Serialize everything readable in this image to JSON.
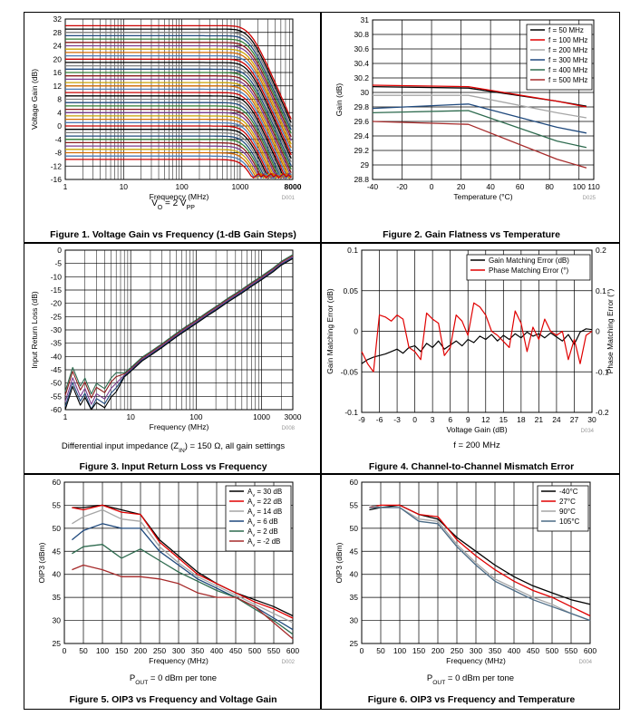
{
  "chart_data": [
    {
      "id": "fig1",
      "type": "line",
      "title": "Figure 1. Voltage Gain vs Frequency (1-dB Gain Steps)",
      "subtitle_main": "V",
      "subtitle_sub_o": "O",
      "subtitle_mid": " = 2 V",
      "subtitle_sub_pp": "PP",
      "code": "D001",
      "xlabel": "Frequency (MHz)",
      "ylabel": "Voltage Gain (dB)",
      "xscale": "log",
      "xlim": [
        1,
        8000
      ],
      "ylim": [
        -16,
        32
      ],
      "xticks": [
        1,
        10,
        100,
        1000,
        8000
      ],
      "xtick_labels": [
        "1",
        "10",
        "100",
        "1000",
        "8000"
      ],
      "yticks": [
        32,
        28,
        24,
        20,
        16,
        12,
        8,
        4,
        0,
        -4,
        -8,
        -12,
        -16
      ],
      "ytick_labels": [
        "32",
        "28",
        "24",
        "20",
        "16",
        "12",
        "8",
        "4",
        "0",
        "-4",
        "-8",
        "-12",
        "-16"
      ],
      "gain_steps_db": [
        30,
        29,
        28,
        27,
        26,
        25,
        24,
        23,
        22,
        21,
        20,
        19,
        18,
        17,
        16,
        15,
        14,
        13,
        12,
        11,
        10,
        9,
        8,
        7,
        6,
        5,
        4,
        3,
        2,
        1,
        0,
        -1,
        -2,
        -3,
        -4,
        -5,
        -6,
        -7,
        -8,
        -9,
        -10
      ],
      "series_colors": [
        "#cc0000",
        "#000000",
        "#7f7f7f",
        "#1f497d",
        "#2e7d32",
        "#8b1a1a",
        "#7a3b8f",
        "#c8a000",
        "#d46a00",
        "#4a7ab5"
      ],
      "bandwidth_3db_mhz": 1500,
      "rolloff_db_per_decade": 40
    },
    {
      "id": "fig2",
      "type": "line",
      "title": "Figure 2. Gain Flatness vs Temperature",
      "code": "D025",
      "xlabel": "Temperature (°C)",
      "ylabel": "Gain (dB)",
      "xlim": [
        -40,
        110
      ],
      "ylim": [
        28.8,
        31
      ],
      "xticks": [
        -40,
        -20,
        0,
        20,
        40,
        60,
        80,
        100,
        110
      ],
      "xtick_labels": [
        "-40",
        "-20",
        "0",
        "20",
        "40",
        "60",
        "80",
        "100",
        "110"
      ],
      "yticks": [
        31,
        30.8,
        30.6,
        30.4,
        30.2,
        30,
        29.8,
        29.6,
        29.4,
        29.2,
        29,
        28.8
      ],
      "ytick_labels": [
        "31",
        "30.8",
        "30.6",
        "30.4",
        "30.2",
        "30",
        "29.8",
        "29.6",
        "29.4",
        "29.2",
        "29",
        "28.8"
      ],
      "legend_position": "top-right",
      "series": [
        {
          "name": "f = 50 MHz",
          "color": "#000000",
          "x": [
            -40,
            25,
            85,
            105
          ],
          "values": [
            30.08,
            30.06,
            29.88,
            29.81
          ]
        },
        {
          "name": "f = 100 MHz",
          "color": "#e00000",
          "x": [
            -40,
            25,
            85,
            105
          ],
          "values": [
            30.1,
            30.08,
            29.88,
            29.8
          ]
        },
        {
          "name": "f = 200 MHz",
          "color": "#a6a6a6",
          "x": [
            -40,
            25,
            85,
            105
          ],
          "values": [
            29.96,
            29.96,
            29.72,
            29.65
          ]
        },
        {
          "name": "f = 300 MHz",
          "color": "#1f497d",
          "x": [
            -40,
            25,
            85,
            105
          ],
          "values": [
            29.78,
            29.84,
            29.52,
            29.44
          ]
        },
        {
          "name": "f = 400 MHz",
          "color": "#2e6b4f",
          "x": [
            -40,
            25,
            85,
            105
          ],
          "values": [
            29.72,
            29.75,
            29.33,
            29.24
          ]
        },
        {
          "name": "f = 500 MHz",
          "color": "#a62a2a",
          "x": [
            -40,
            25,
            85,
            105
          ],
          "values": [
            29.6,
            29.56,
            29.08,
            28.96
          ]
        }
      ]
    },
    {
      "id": "fig3",
      "type": "line",
      "title": "Figure 3. Input Return Loss vs Frequency",
      "note_pre": "Differential input impedance (Z",
      "note_sub": "IN",
      "note_post": ") = 150 Ω, all gain settings",
      "code": "D008",
      "xlabel": "Frequency (MHz)",
      "ylabel": "Input Return Loss (dB)",
      "xscale": "log",
      "xlim": [
        1,
        3000
      ],
      "ylim": [
        -60,
        0
      ],
      "xticks": [
        1,
        10,
        100,
        1000,
        3000
      ],
      "xtick_labels": [
        "1",
        "10",
        "100",
        "1000",
        "3000"
      ],
      "yticks": [
        0,
        -5,
        -10,
        -15,
        -20,
        -25,
        -30,
        -35,
        -40,
        -45,
        -50,
        -55,
        -60
      ],
      "ytick_labels": [
        "0",
        "-5",
        "-10",
        "-15",
        "-20",
        "-25",
        "-30",
        "-35",
        "-40",
        "-45",
        "-50",
        "-55",
        "-60"
      ],
      "series": [
        {
          "name": "all gain settings",
          "color": "#7a3b8f",
          "x": [
            1,
            1.3,
            1.7,
            2,
            2.5,
            3,
            4,
            5,
            6,
            8,
            10,
            15,
            20,
            30,
            50,
            70,
            100,
            150,
            200,
            300,
            500,
            700,
            1000,
            1500,
            2000,
            3000
          ],
          "values": [
            -57,
            -48,
            -55,
            -52,
            -58,
            -54,
            -56,
            -52,
            -50,
            -47,
            -45,
            -41,
            -39,
            -36,
            -32,
            -29.5,
            -27,
            -24,
            -22,
            -19,
            -15.5,
            -13,
            -10.5,
            -7.5,
            -5,
            -2.5
          ]
        }
      ]
    },
    {
      "id": "fig4",
      "type": "line",
      "title": "Figure 4. Channel-to-Channel Mismatch Error",
      "note": "f = 200 MHz",
      "code": "D034",
      "xlabel": "Voltage Gain (dB)",
      "ylabel": "Gain Matching Error (dB)",
      "ylabel_right": "Phase Matching Error (°)",
      "xlim": [
        -9,
        30
      ],
      "ylim": [
        -0.1,
        0.1
      ],
      "ylim_right": [
        -0.2,
        0.2
      ],
      "xticks": [
        -9,
        -6,
        -3,
        0,
        3,
        6,
        9,
        12,
        15,
        18,
        21,
        24,
        27,
        30
      ],
      "xtick_labels": [
        "-9",
        "-6",
        "-3",
        "0",
        "3",
        "6",
        "9",
        "12",
        "15",
        "18",
        "21",
        "24",
        "27",
        "30"
      ],
      "yticks": [
        0.1,
        0.05,
        0,
        -0.05,
        -0.1
      ],
      "ytick_labels": [
        "0.1",
        "0.05",
        "0",
        "-0.05",
        "-0.1"
      ],
      "yticks_right": [
        0.2,
        0.1,
        0,
        -0.1,
        -0.2
      ],
      "ytick_labels_right": [
        "0.2",
        "0.1",
        "0",
        "-0.1",
        "-0.2"
      ],
      "legend_position": "top-right",
      "series": [
        {
          "name": "Gain Matching Error (dB)",
          "axis": "left",
          "color": "#000000",
          "x": [
            -9,
            -8,
            -7,
            -6,
            -5,
            -4,
            -3,
            -2,
            -1,
            0,
            1,
            2,
            3,
            4,
            5,
            6,
            7,
            8,
            9,
            10,
            11,
            12,
            13,
            14,
            15,
            16,
            17,
            18,
            19,
            20,
            21,
            22,
            23,
            24,
            25,
            26,
            27,
            28,
            29,
            30
          ],
          "values": [
            -0.04,
            -0.035,
            -0.032,
            -0.03,
            -0.028,
            -0.025,
            -0.022,
            -0.027,
            -0.02,
            -0.018,
            -0.025,
            -0.015,
            -0.02,
            -0.012,
            -0.022,
            -0.017,
            -0.012,
            -0.018,
            -0.01,
            -0.014,
            -0.006,
            -0.01,
            -0.004,
            -0.012,
            -0.005,
            -0.01,
            -0.003,
            -0.008,
            -0.001,
            -0.006,
            -0.003,
            -0.008,
            -0.002,
            -0.007,
            -0.012,
            -0.004,
            -0.016,
            -0.001,
            0.003,
            0.002
          ]
        },
        {
          "name": "Phase Matching Error (°)",
          "axis": "right",
          "color": "#e00000",
          "x": [
            -9,
            -8,
            -7,
            -6,
            -5,
            -4,
            -3,
            -2,
            -1,
            0,
            1,
            2,
            3,
            4,
            5,
            6,
            7,
            8,
            9,
            10,
            11,
            12,
            13,
            14,
            15,
            16,
            17,
            18,
            19,
            20,
            21,
            22,
            23,
            24,
            25,
            26,
            27,
            28,
            29,
            30
          ],
          "values": [
            -0.05,
            -0.08,
            -0.1,
            0.04,
            0.035,
            0.025,
            0.04,
            0.03,
            -0.04,
            -0.05,
            -0.07,
            0.045,
            0.03,
            0.02,
            -0.06,
            -0.04,
            0.04,
            0.025,
            -0.01,
            0.07,
            0.06,
            0.04,
            0.0,
            -0.01,
            -0.025,
            -0.04,
            0.05,
            0.02,
            -0.05,
            0.01,
            -0.02,
            0.03,
            0.0,
            -0.01,
            0.0,
            -0.07,
            -0.02,
            -0.08,
            -0.01,
            0.0
          ]
        }
      ]
    },
    {
      "id": "fig5",
      "type": "line",
      "title": "Figure 5. OIP3 vs Frequency and Voltage Gain",
      "note_pre": "P",
      "note_sub": "OUT",
      "note_post": " = 0 dBm per tone",
      "code": "D002",
      "xlabel": "Frequency (MHz)",
      "ylabel": "OIP3 (dBm)",
      "xlim": [
        0,
        600
      ],
      "ylim": [
        25,
        60
      ],
      "xticks": [
        0,
        50,
        100,
        150,
        200,
        250,
        300,
        350,
        400,
        450,
        500,
        550,
        600
      ],
      "xtick_labels": [
        "0",
        "50",
        "100",
        "150",
        "200",
        "250",
        "300",
        "350",
        "400",
        "450",
        "500",
        "550",
        "600"
      ],
      "yticks": [
        60,
        55,
        50,
        45,
        40,
        35,
        30,
        25
      ],
      "ytick_labels": [
        "60",
        "55",
        "50",
        "45",
        "40",
        "35",
        "30",
        "25"
      ],
      "legend_position": "top-right",
      "series": [
        {
          "name": "A",
          "sub": "v",
          "suffix": " = 30 dB",
          "color": "#000000",
          "x": [
            20,
            50,
            100,
            150,
            200,
            250,
            300,
            350,
            400,
            450,
            500,
            550,
            600
          ],
          "values": [
            54.5,
            54.5,
            55,
            54,
            53,
            47.5,
            44,
            40.5,
            38,
            36,
            34.5,
            33,
            31
          ]
        },
        {
          "name": "A",
          "sub": "v",
          "suffix": " = 22 dB",
          "color": "#e00000",
          "x": [
            20,
            50,
            100,
            150,
            200,
            250,
            300,
            350,
            400,
            450,
            500,
            550,
            600
          ],
          "values": [
            54.5,
            54,
            55,
            53.5,
            53,
            47,
            43.5,
            40,
            38,
            36,
            34,
            32.5,
            30.5
          ]
        },
        {
          "name": "A",
          "sub": "v",
          "suffix": " = 14 dB",
          "color": "#a6a6a6",
          "x": [
            20,
            50,
            100,
            150,
            200,
            250,
            300,
            350,
            400,
            450,
            500,
            550,
            600
          ],
          "values": [
            51,
            52.5,
            54,
            52,
            51.5,
            46,
            42.5,
            39.5,
            37.5,
            35.5,
            33.5,
            31.5,
            29.5
          ]
        },
        {
          "name": "A",
          "sub": "v",
          "suffix": " = 6 dB",
          "color": "#1f497d",
          "x": [
            20,
            50,
            100,
            150,
            200,
            250,
            300,
            350,
            400,
            450,
            500,
            550,
            600
          ],
          "values": [
            47.5,
            49.5,
            51,
            50,
            50,
            45,
            42,
            39,
            37,
            35,
            33,
            30.5,
            28
          ]
        },
        {
          "name": "A",
          "sub": "v",
          "suffix": " = 2 dB",
          "color": "#2e6b4f",
          "x": [
            20,
            50,
            100,
            150,
            200,
            250,
            300,
            350,
            400,
            450,
            500,
            550,
            600
          ],
          "values": [
            44.5,
            46,
            46.5,
            43.5,
            45.5,
            43,
            40.5,
            38.5,
            36.5,
            35,
            32.5,
            30,
            27
          ]
        },
        {
          "name": "A",
          "sub": "v",
          "suffix": " = -2 dB",
          "color": "#a62a2a",
          "x": [
            20,
            50,
            100,
            150,
            200,
            250,
            300,
            350,
            400,
            450,
            500,
            550,
            600
          ],
          "values": [
            41,
            42,
            41,
            39.5,
            39.5,
            39,
            38,
            36,
            35,
            35,
            33,
            29.5,
            26
          ]
        }
      ]
    },
    {
      "id": "fig6",
      "type": "line",
      "title": "Figure 6. OIP3 vs Frequency and Temperature",
      "note_pre": "P",
      "note_sub": "OUT",
      "note_post": " = 0 dBm per tone",
      "code": "D004",
      "xlabel": "Frequency (MHz)",
      "ylabel": "OIP3 (dBm)",
      "xlim": [
        0,
        600
      ],
      "ylim": [
        25,
        60
      ],
      "xticks": [
        0,
        50,
        100,
        150,
        200,
        250,
        300,
        350,
        400,
        450,
        500,
        550,
        600
      ],
      "xtick_labels": [
        "0",
        "50",
        "100",
        "150",
        "200",
        "250",
        "300",
        "350",
        "400",
        "450",
        "500",
        "550",
        "600"
      ],
      "yticks": [
        60,
        55,
        50,
        45,
        40,
        35,
        30,
        25
      ],
      "ytick_labels": [
        "60",
        "55",
        "50",
        "45",
        "40",
        "35",
        "30",
        "25"
      ],
      "legend_position": "top-right",
      "series": [
        {
          "name": "-40°C",
          "color": "#000000",
          "x": [
            20,
            50,
            100,
            150,
            200,
            250,
            300,
            350,
            400,
            450,
            500,
            550,
            600
          ],
          "values": [
            54,
            54.5,
            55,
            53,
            52,
            48,
            45,
            42,
            39.5,
            37.5,
            36,
            34.5,
            33.5
          ]
        },
        {
          "name": "27°C",
          "color": "#e00000",
          "x": [
            20,
            50,
            100,
            150,
            200,
            250,
            300,
            350,
            400,
            450,
            500,
            550,
            600
          ],
          "values": [
            54.5,
            55,
            55,
            53,
            52.5,
            47.5,
            44,
            41,
            38.5,
            36.5,
            35,
            33,
            31
          ]
        },
        {
          "name": "90°C",
          "color": "#a6a6a6",
          "x": [
            20,
            50,
            100,
            150,
            200,
            250,
            300,
            350,
            400,
            450,
            500,
            550,
            600
          ],
          "values": [
            55,
            54.5,
            54.5,
            52,
            51.5,
            46.5,
            42.5,
            39,
            37,
            35,
            33.5,
            31.5,
            30
          ]
        },
        {
          "name": "105°C",
          "color": "#4a6a85",
          "x": [
            20,
            50,
            100,
            150,
            200,
            250,
            300,
            350,
            400,
            450,
            500,
            550,
            600
          ],
          "values": [
            54.5,
            54.5,
            54.5,
            51.5,
            51,
            46,
            42,
            38.5,
            36.5,
            34.5,
            33,
            31.5,
            30
          ]
        }
      ]
    }
  ]
}
